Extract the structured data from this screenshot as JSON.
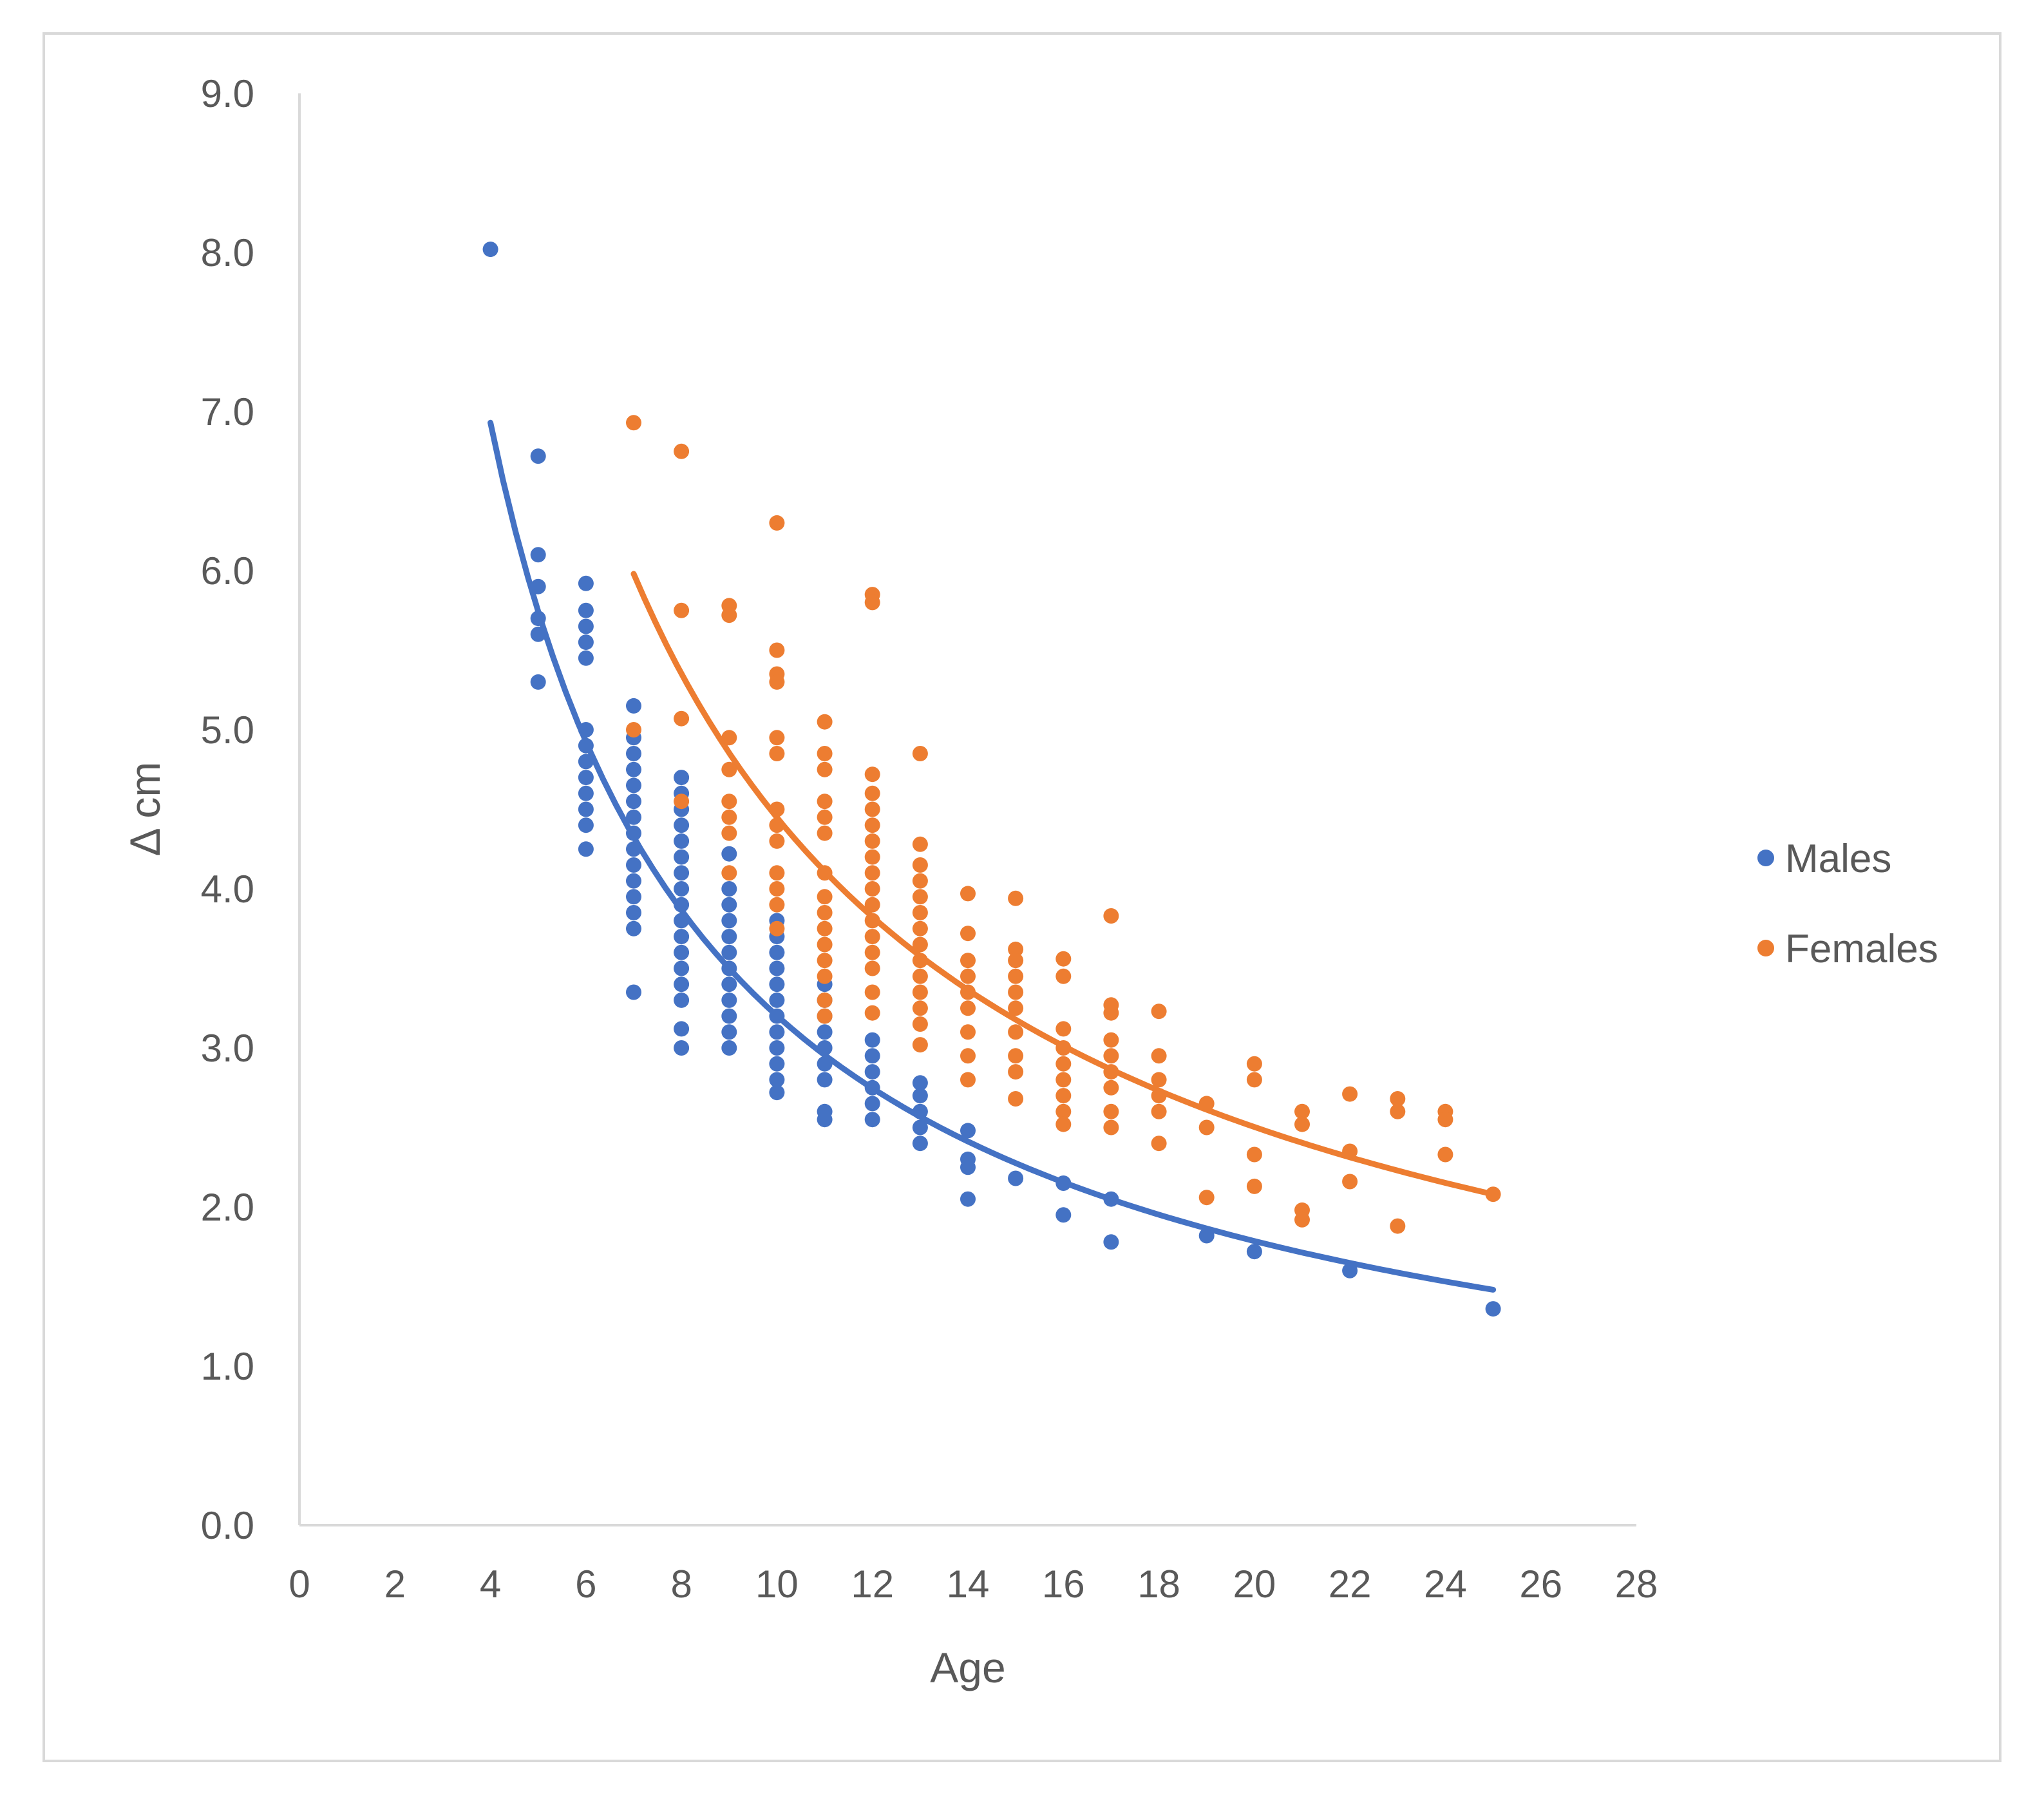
{
  "chart_data": {
    "type": "scatter",
    "title": "",
    "xlabel": "Age",
    "ylabel": "Δ cm",
    "xlim": [
      0,
      28
    ],
    "ylim": [
      0,
      9
    ],
    "x_ticks": [
      "0",
      "2",
      "4",
      "6",
      "8",
      "10",
      "12",
      "14",
      "16",
      "18",
      "20",
      "22",
      "24",
      "26",
      "28"
    ],
    "y_ticks": [
      "0.0",
      "1.0",
      "2.0",
      "3.0",
      "4.0",
      "5.0",
      "6.0",
      "7.0",
      "8.0",
      "9.0"
    ],
    "grid": false,
    "legend_position": "right",
    "series": [
      {
        "name": "Males",
        "color": "#4472C4",
        "points": [
          [
            4,
            8.02
          ],
          [
            5,
            6.72
          ],
          [
            5,
            6.1
          ],
          [
            5,
            5.9
          ],
          [
            5,
            5.7
          ],
          [
            5,
            5.6
          ],
          [
            5,
            5.3
          ],
          [
            6,
            5.92
          ],
          [
            6,
            5.75
          ],
          [
            6,
            5.65
          ],
          [
            6,
            5.55
          ],
          [
            6,
            5.45
          ],
          [
            6,
            5.0
          ],
          [
            6,
            4.9
          ],
          [
            6,
            4.8
          ],
          [
            6,
            4.7
          ],
          [
            6,
            4.6
          ],
          [
            6,
            4.5
          ],
          [
            6,
            4.4
          ],
          [
            6,
            4.25
          ],
          [
            7,
            5.15
          ],
          [
            7,
            4.95
          ],
          [
            7,
            4.85
          ],
          [
            7,
            4.75
          ],
          [
            7,
            4.65
          ],
          [
            7,
            4.55
          ],
          [
            7,
            4.45
          ],
          [
            7,
            4.35
          ],
          [
            7,
            4.25
          ],
          [
            7,
            4.15
          ],
          [
            7,
            4.05
          ],
          [
            7,
            3.95
          ],
          [
            7,
            3.85
          ],
          [
            7,
            3.75
          ],
          [
            7,
            3.35
          ],
          [
            8,
            4.7
          ],
          [
            8,
            4.6
          ],
          [
            8,
            4.5
          ],
          [
            8,
            4.4
          ],
          [
            8,
            4.3
          ],
          [
            8,
            4.2
          ],
          [
            8,
            4.1
          ],
          [
            8,
            4.0
          ],
          [
            8,
            3.9
          ],
          [
            8,
            3.8
          ],
          [
            8,
            3.7
          ],
          [
            8,
            3.6
          ],
          [
            8,
            3.5
          ],
          [
            8,
            3.4
          ],
          [
            8,
            3.3
          ],
          [
            8,
            3.12
          ],
          [
            8,
            3.0
          ],
          [
            9,
            4.22
          ],
          [
            9,
            4.0
          ],
          [
            9,
            3.9
          ],
          [
            9,
            3.8
          ],
          [
            9,
            3.7
          ],
          [
            9,
            3.6
          ],
          [
            9,
            3.5
          ],
          [
            9,
            3.4
          ],
          [
            9,
            3.3
          ],
          [
            9,
            3.2
          ],
          [
            9,
            3.1
          ],
          [
            9,
            3.0
          ],
          [
            10,
            3.8
          ],
          [
            10,
            3.7
          ],
          [
            10,
            3.6
          ],
          [
            10,
            3.5
          ],
          [
            10,
            3.4
          ],
          [
            10,
            3.3
          ],
          [
            10,
            3.2
          ],
          [
            10,
            3.1
          ],
          [
            10,
            3.0
          ],
          [
            10,
            2.9
          ],
          [
            10,
            2.8
          ],
          [
            10,
            2.72
          ],
          [
            11,
            3.4
          ],
          [
            11,
            3.3
          ],
          [
            11,
            3.2
          ],
          [
            11,
            3.1
          ],
          [
            11,
            3.0
          ],
          [
            11,
            2.9
          ],
          [
            11,
            2.8
          ],
          [
            11,
            2.6
          ],
          [
            11,
            2.55
          ],
          [
            12,
            3.05
          ],
          [
            12,
            2.95
          ],
          [
            12,
            2.85
          ],
          [
            12,
            2.75
          ],
          [
            12,
            2.65
          ],
          [
            12,
            2.55
          ],
          [
            13,
            2.78
          ],
          [
            13,
            2.7
          ],
          [
            13,
            2.6
          ],
          [
            13,
            2.5
          ],
          [
            13,
            2.4
          ],
          [
            14,
            2.48
          ],
          [
            14,
            2.3
          ],
          [
            14,
            2.25
          ],
          [
            14,
            2.05
          ],
          [
            15,
            2.18
          ],
          [
            16,
            2.15
          ],
          [
            16,
            1.95
          ],
          [
            17,
            2.05
          ],
          [
            17,
            1.78
          ],
          [
            19,
            1.82
          ],
          [
            20,
            1.72
          ],
          [
            22,
            1.6
          ],
          [
            25,
            1.36
          ]
        ],
        "trendline": {
          "from": 4,
          "to": 25,
          "start_value": 6.93,
          "end_value": 1.48
        }
      },
      {
        "name": "Females",
        "color": "#ED7D31",
        "points": [
          [
            7,
            6.93
          ],
          [
            7,
            5.0
          ],
          [
            8,
            6.75
          ],
          [
            8,
            5.75
          ],
          [
            8,
            5.07
          ],
          [
            8,
            4.55
          ],
          [
            9,
            5.78
          ],
          [
            9,
            5.72
          ],
          [
            9,
            4.95
          ],
          [
            9,
            4.75
          ],
          [
            9,
            4.55
          ],
          [
            9,
            4.45
          ],
          [
            9,
            4.35
          ],
          [
            9,
            4.1
          ],
          [
            10,
            6.3
          ],
          [
            10,
            5.5
          ],
          [
            10,
            5.35
          ],
          [
            10,
            5.3
          ],
          [
            10,
            4.95
          ],
          [
            10,
            4.85
          ],
          [
            10,
            4.5
          ],
          [
            10,
            4.4
          ],
          [
            10,
            4.3
          ],
          [
            10,
            4.1
          ],
          [
            10,
            4.0
          ],
          [
            10,
            3.9
          ],
          [
            10,
            3.75
          ],
          [
            11,
            5.05
          ],
          [
            11,
            4.85
          ],
          [
            11,
            4.75
          ],
          [
            11,
            4.55
          ],
          [
            11,
            4.45
          ],
          [
            11,
            4.35
          ],
          [
            11,
            4.1
          ],
          [
            11,
            3.95
          ],
          [
            11,
            3.85
          ],
          [
            11,
            3.75
          ],
          [
            11,
            3.65
          ],
          [
            11,
            3.55
          ],
          [
            11,
            3.45
          ],
          [
            11,
            3.3
          ],
          [
            11,
            3.2
          ],
          [
            12,
            5.85
          ],
          [
            12,
            5.8
          ],
          [
            12,
            4.72
          ],
          [
            12,
            4.6
          ],
          [
            12,
            4.5
          ],
          [
            12,
            4.4
          ],
          [
            12,
            4.3
          ],
          [
            12,
            4.2
          ],
          [
            12,
            4.1
          ],
          [
            12,
            4.0
          ],
          [
            12,
            3.9
          ],
          [
            12,
            3.8
          ],
          [
            12,
            3.7
          ],
          [
            12,
            3.6
          ],
          [
            12,
            3.5
          ],
          [
            12,
            3.35
          ],
          [
            12,
            3.22
          ],
          [
            13,
            4.85
          ],
          [
            13,
            4.28
          ],
          [
            13,
            4.15
          ],
          [
            13,
            4.05
          ],
          [
            13,
            3.95
          ],
          [
            13,
            3.85
          ],
          [
            13,
            3.75
          ],
          [
            13,
            3.65
          ],
          [
            13,
            3.55
          ],
          [
            13,
            3.45
          ],
          [
            13,
            3.35
          ],
          [
            13,
            3.25
          ],
          [
            13,
            3.15
          ],
          [
            13,
            3.02
          ],
          [
            14,
            3.97
          ],
          [
            14,
            3.72
          ],
          [
            14,
            3.55
          ],
          [
            14,
            3.45
          ],
          [
            14,
            3.35
          ],
          [
            14,
            3.25
          ],
          [
            14,
            3.1
          ],
          [
            14,
            2.95
          ],
          [
            14,
            2.8
          ],
          [
            15,
            3.94
          ],
          [
            15,
            3.62
          ],
          [
            15,
            3.55
          ],
          [
            15,
            3.45
          ],
          [
            15,
            3.35
          ],
          [
            15,
            3.25
          ],
          [
            15,
            3.1
          ],
          [
            15,
            2.95
          ],
          [
            15,
            2.85
          ],
          [
            15,
            2.68
          ],
          [
            16,
            3.56
          ],
          [
            16,
            3.45
          ],
          [
            16,
            3.12
          ],
          [
            16,
            3.0
          ],
          [
            16,
            2.9
          ],
          [
            16,
            2.8
          ],
          [
            16,
            2.7
          ],
          [
            16,
            2.6
          ],
          [
            16,
            2.52
          ],
          [
            17,
            3.83
          ],
          [
            17,
            3.27
          ],
          [
            17,
            3.22
          ],
          [
            17,
            3.05
          ],
          [
            17,
            2.95
          ],
          [
            17,
            2.85
          ],
          [
            17,
            2.75
          ],
          [
            17,
            2.6
          ],
          [
            17,
            2.5
          ],
          [
            18,
            3.23
          ],
          [
            18,
            2.95
          ],
          [
            18,
            2.8
          ],
          [
            18,
            2.7
          ],
          [
            18,
            2.6
          ],
          [
            18,
            2.4
          ],
          [
            19,
            2.65
          ],
          [
            19,
            2.5
          ],
          [
            19,
            2.06
          ],
          [
            20,
            2.9
          ],
          [
            20,
            2.8
          ],
          [
            20,
            2.33
          ],
          [
            20,
            2.13
          ],
          [
            21,
            2.6
          ],
          [
            21,
            2.52
          ],
          [
            21,
            1.98
          ],
          [
            21,
            1.92
          ],
          [
            22,
            2.71
          ],
          [
            22,
            2.35
          ],
          [
            22,
            2.16
          ],
          [
            23,
            2.68
          ],
          [
            23,
            2.6
          ],
          [
            23,
            1.88
          ],
          [
            24,
            2.6
          ],
          [
            24,
            2.55
          ],
          [
            24,
            2.33
          ],
          [
            25,
            2.08
          ]
        ],
        "trendline": {
          "from": 7,
          "to": 25,
          "start_value": 5.98,
          "end_value": 2.08
        }
      }
    ]
  }
}
